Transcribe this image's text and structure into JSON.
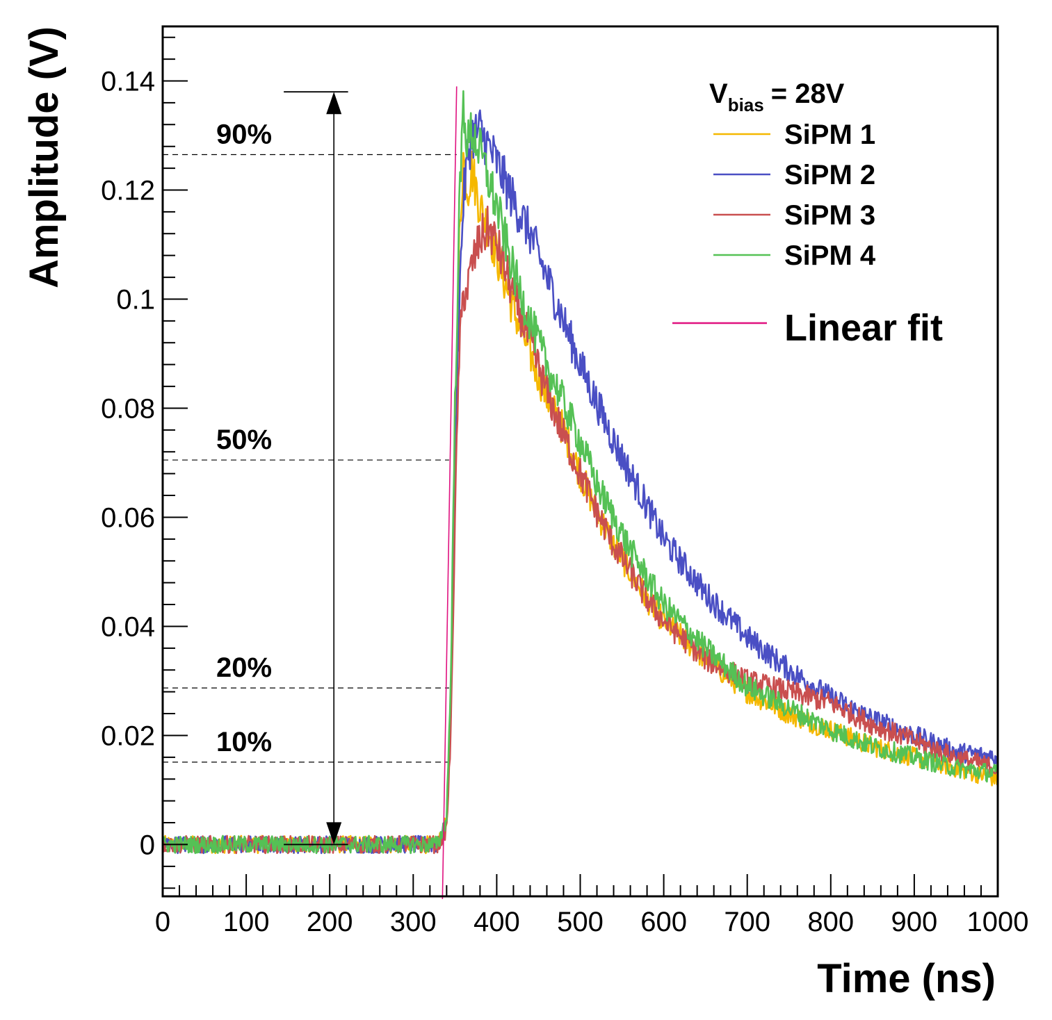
{
  "chart_data": {
    "type": "line",
    "title": "",
    "xlabel": "Time (ns)",
    "ylabel": "Amplitude (V)",
    "xlim": [
      0,
      1000
    ],
    "ylim": [
      -0.0095,
      0.15
    ],
    "x_ticks": [
      0,
      100,
      200,
      300,
      400,
      500,
      600,
      700,
      800,
      900,
      1000
    ],
    "x_tick_labels": [
      "0",
      "100",
      "200",
      "300",
      "400",
      "500",
      "600",
      "700",
      "800",
      "900",
      "1000"
    ],
    "y_ticks": [
      0,
      0.02,
      0.04,
      0.06,
      0.08,
      0.1,
      0.12,
      0.14
    ],
    "y_tick_labels": [
      "0",
      "0.02",
      "0.04",
      "0.06",
      "0.08",
      "0.1",
      "0.12",
      "0.14"
    ],
    "legend": {
      "placement": "top-right",
      "header_main": "V",
      "header_sub": "bias",
      "header_rest": "= 28V"
    },
    "series": [
      {
        "name": "SiPM 1",
        "color": "#f5b800",
        "x": [
          0,
          100,
          200,
          300,
          330,
          340,
          345,
          350,
          355,
          360,
          365,
          370,
          380,
          390,
          400,
          420,
          440,
          460,
          480,
          500,
          520,
          540,
          560,
          580,
          600,
          650,
          700,
          750,
          800,
          850,
          900,
          950,
          1000
        ],
        "y": [
          0,
          0,
          0,
          0,
          0,
          0.004,
          0.025,
          0.07,
          0.11,
          0.126,
          0.12,
          0.124,
          0.117,
          0.113,
          0.108,
          0.098,
          0.09,
          0.082,
          0.076,
          0.068,
          0.061,
          0.055,
          0.05,
          0.045,
          0.041,
          0.034,
          0.028,
          0.024,
          0.021,
          0.018,
          0.016,
          0.014,
          0.012
        ]
      },
      {
        "name": "SiPM 2",
        "color": "#4a4fc4",
        "x": [
          0,
          100,
          200,
          300,
          330,
          340,
          345,
          350,
          355,
          360,
          365,
          370,
          380,
          390,
          400,
          420,
          440,
          460,
          480,
          500,
          520,
          540,
          560,
          580,
          600,
          650,
          700,
          750,
          800,
          850,
          900,
          950,
          1000
        ],
        "y": [
          0,
          0,
          0,
          0,
          0,
          0.004,
          0.025,
          0.07,
          0.1,
          0.118,
          0.126,
          0.13,
          0.131,
          0.128,
          0.125,
          0.118,
          0.112,
          0.104,
          0.096,
          0.088,
          0.081,
          0.074,
          0.068,
          0.062,
          0.056,
          0.046,
          0.038,
          0.032,
          0.027,
          0.023,
          0.02,
          0.017,
          0.016
        ]
      },
      {
        "name": "SiPM 3",
        "color": "#c94f4f",
        "x": [
          0,
          100,
          200,
          300,
          330,
          340,
          345,
          350,
          355,
          360,
          365,
          370,
          380,
          390,
          400,
          420,
          440,
          460,
          480,
          500,
          520,
          540,
          560,
          580,
          600,
          650,
          700,
          750,
          800,
          850,
          900,
          950,
          1000
        ],
        "y": [
          0,
          0,
          0,
          0,
          0,
          0.003,
          0.02,
          0.06,
          0.09,
          0.101,
          0.102,
          0.106,
          0.111,
          0.113,
          0.11,
          0.101,
          0.092,
          0.083,
          0.075,
          0.068,
          0.061,
          0.055,
          0.05,
          0.045,
          0.041,
          0.034,
          0.03,
          0.028,
          0.026,
          0.022,
          0.019,
          0.016,
          0.014
        ]
      },
      {
        "name": "SiPM 4",
        "color": "#55c155",
        "x": [
          0,
          100,
          200,
          300,
          330,
          340,
          345,
          350,
          355,
          360,
          365,
          370,
          380,
          390,
          400,
          420,
          440,
          460,
          480,
          500,
          520,
          540,
          560,
          580,
          600,
          650,
          700,
          750,
          800,
          850,
          900,
          950,
          1000
        ],
        "y": [
          0,
          0,
          0,
          0,
          0,
          0.005,
          0.03,
          0.08,
          0.115,
          0.136,
          0.128,
          0.131,
          0.127,
          0.122,
          0.117,
          0.105,
          0.096,
          0.088,
          0.081,
          0.074,
          0.066,
          0.06,
          0.054,
          0.049,
          0.044,
          0.036,
          0.029,
          0.025,
          0.021,
          0.018,
          0.016,
          0.014,
          0.013
        ]
      }
    ],
    "linear_fit": {
      "name": "Linear fit",
      "color": "#e0117f",
      "x": [
        335,
        352
      ],
      "y": [
        -0.01,
        0.139
      ]
    },
    "annotations": {
      "amplitude_arrow": {
        "x": 205,
        "y_from": 0,
        "y_to": 0.138,
        "top_cap_x": [
          145,
          222
        ],
        "bottom_cap_x": [
          145,
          222
        ]
      },
      "levels": [
        {
          "label": "90%",
          "y": 0.1265,
          "x_end": 352
        },
        {
          "label": "50%",
          "y": 0.0705,
          "x_end": 343
        },
        {
          "label": "20%",
          "y": 0.0287,
          "x_end": 343
        },
        {
          "label": "10%",
          "y": 0.0151,
          "x_end": 342
        }
      ]
    }
  }
}
